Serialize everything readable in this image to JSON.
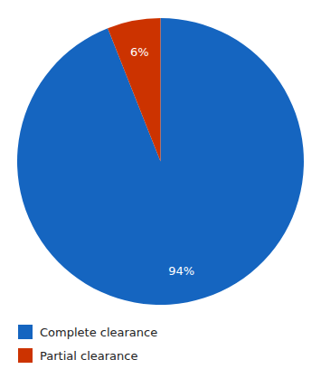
{
  "chart_data": {
    "type": "pie",
    "categories": [
      "Complete clearance",
      "Partial clearance"
    ],
    "values": [
      94,
      6
    ],
    "value_labels": [
      "94%",
      "6%"
    ],
    "colors": [
      "#1565C0",
      "#CC3300"
    ],
    "data_labels": true,
    "legend": "lower left"
  }
}
